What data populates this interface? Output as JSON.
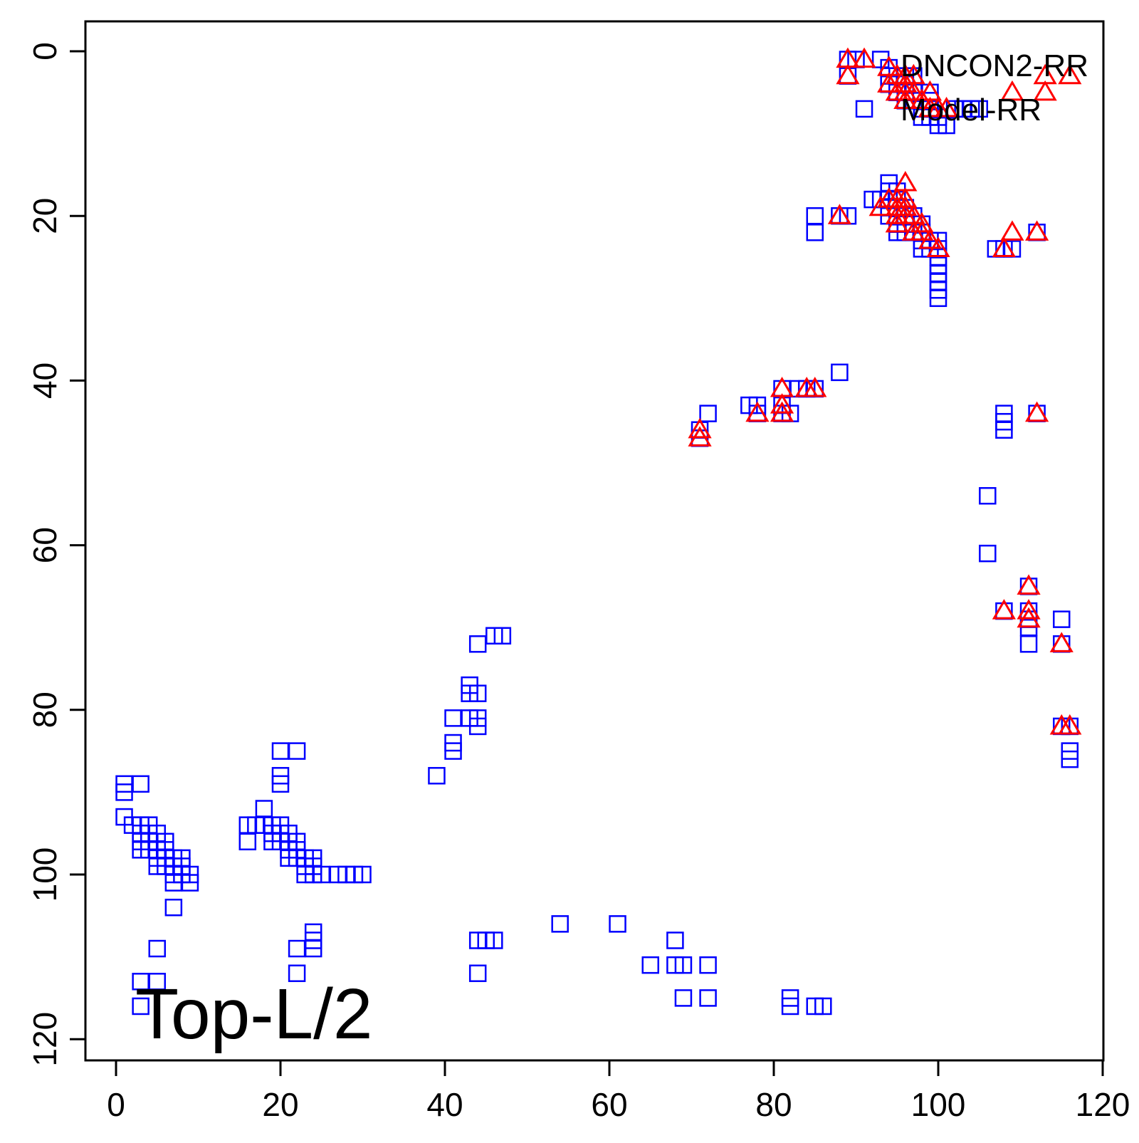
{
  "chart_data": {
    "type": "scatter",
    "title": "",
    "xlabel": "",
    "ylabel": "",
    "xlim": [
      -4,
      120
    ],
    "ylim": [
      123,
      -4
    ],
    "y_axis_reversed": true,
    "grid": false,
    "legend_position": "top-right",
    "annotation": "Top-L/2",
    "x_ticks": [
      {
        "value": 0,
        "label": "0"
      },
      {
        "value": 20,
        "label": "20"
      },
      {
        "value": 40,
        "label": "40"
      },
      {
        "value": 60,
        "label": "60"
      },
      {
        "value": 80,
        "label": "80"
      },
      {
        "value": 100,
        "label": "100"
      },
      {
        "value": 120,
        "label": "120"
      }
    ],
    "y_ticks": [
      {
        "value": 0,
        "label": "0"
      },
      {
        "value": 20,
        "label": "20"
      },
      {
        "value": 40,
        "label": "40"
      },
      {
        "value": 60,
        "label": "60"
      },
      {
        "value": 80,
        "label": "80"
      },
      {
        "value": 100,
        "label": "100"
      },
      {
        "value": 120,
        "label": "120"
      }
    ],
    "series": [
      {
        "name": "DNCON2-RR",
        "marker": "square",
        "color": "#0000FF",
        "points": [
          [
            89,
            1
          ],
          [
            90,
            1
          ],
          [
            93,
            1
          ],
          [
            89,
            3
          ],
          [
            91,
            7
          ],
          [
            94,
            2
          ],
          [
            94,
            3
          ],
          [
            95,
            3
          ],
          [
            96,
            3
          ],
          [
            97,
            3
          ],
          [
            94,
            4
          ],
          [
            95,
            4
          ],
          [
            96,
            4
          ],
          [
            95,
            5
          ],
          [
            96,
            5
          ],
          [
            97,
            5
          ],
          [
            96,
            6
          ],
          [
            97,
            6
          ],
          [
            98,
            7
          ],
          [
            99,
            5
          ],
          [
            99,
            6
          ],
          [
            99,
            7
          ],
          [
            98,
            8
          ],
          [
            99,
            8
          ],
          [
            100,
            8
          ],
          [
            100,
            9
          ],
          [
            101,
            9
          ],
          [
            102,
            7
          ],
          [
            103,
            7
          ],
          [
            104,
            7
          ],
          [
            105,
            7
          ],
          [
            94,
            16
          ],
          [
            94,
            17
          ],
          [
            95,
            17
          ],
          [
            92,
            18
          ],
          [
            93,
            18
          ],
          [
            94,
            18
          ],
          [
            95,
            18
          ],
          [
            94,
            19
          ],
          [
            95,
            19
          ],
          [
            96,
            19
          ],
          [
            94,
            20
          ],
          [
            95,
            20
          ],
          [
            96,
            20
          ],
          [
            97,
            20
          ],
          [
            95,
            21
          ],
          [
            96,
            21
          ],
          [
            97,
            21
          ],
          [
            98,
            21
          ],
          [
            95,
            22
          ],
          [
            96,
            22
          ],
          [
            97,
            22
          ],
          [
            98,
            22
          ],
          [
            98,
            23
          ],
          [
            99,
            23
          ],
          [
            100,
            23
          ],
          [
            98,
            24
          ],
          [
            99,
            24
          ],
          [
            100,
            24
          ],
          [
            100,
            25
          ],
          [
            100,
            26
          ],
          [
            100,
            27
          ],
          [
            100,
            28
          ],
          [
            100,
            29
          ],
          [
            100,
            30
          ],
          [
            85,
            20
          ],
          [
            85,
            22
          ],
          [
            88,
            20
          ],
          [
            89,
            20
          ],
          [
            107,
            24
          ],
          [
            108,
            24
          ],
          [
            109,
            24
          ],
          [
            112,
            22
          ],
          [
            88,
            39
          ],
          [
            83,
            41
          ],
          [
            84,
            41
          ],
          [
            85,
            41
          ],
          [
            81,
            41
          ],
          [
            81,
            43
          ],
          [
            77,
            43
          ],
          [
            78,
            43
          ],
          [
            81,
            44
          ],
          [
            82,
            44
          ],
          [
            78,
            44
          ],
          [
            71,
            46
          ],
          [
            71,
            47
          ],
          [
            72,
            44
          ],
          [
            112,
            44
          ],
          [
            108,
            44
          ],
          [
            108,
            45
          ],
          [
            108,
            46
          ],
          [
            106,
            54
          ],
          [
            106,
            61
          ],
          [
            111,
            65
          ],
          [
            108,
            68
          ],
          [
            111,
            68
          ],
          [
            111,
            69
          ],
          [
            111,
            70
          ],
          [
            111,
            72
          ],
          [
            115,
            69
          ],
          [
            115,
            72
          ],
          [
            115,
            82
          ],
          [
            116,
            82
          ],
          [
            116,
            85
          ],
          [
            116,
            86
          ],
          [
            47,
            71
          ],
          [
            46,
            71
          ],
          [
            44,
            72
          ],
          [
            43,
            77
          ],
          [
            43,
            78
          ],
          [
            44,
            78
          ],
          [
            41,
            81
          ],
          [
            43,
            81
          ],
          [
            44,
            81
          ],
          [
            44,
            82
          ],
          [
            41,
            84
          ],
          [
            41,
            85
          ],
          [
            39,
            88
          ],
          [
            1,
            89
          ],
          [
            1,
            90
          ],
          [
            3,
            89
          ],
          [
            1,
            93
          ],
          [
            2,
            94
          ],
          [
            3,
            94
          ],
          [
            4,
            94
          ],
          [
            3,
            95
          ],
          [
            4,
            95
          ],
          [
            5,
            95
          ],
          [
            3,
            96
          ],
          [
            4,
            96
          ],
          [
            5,
            96
          ],
          [
            6,
            96
          ],
          [
            3,
            97
          ],
          [
            4,
            97
          ],
          [
            5,
            97
          ],
          [
            6,
            97
          ],
          [
            5,
            98
          ],
          [
            6,
            98
          ],
          [
            7,
            98
          ],
          [
            8,
            98
          ],
          [
            5,
            99
          ],
          [
            6,
            99
          ],
          [
            7,
            99
          ],
          [
            8,
            99
          ],
          [
            7,
            100
          ],
          [
            8,
            100
          ],
          [
            9,
            100
          ],
          [
            7,
            101
          ],
          [
            9,
            101
          ],
          [
            7,
            104
          ],
          [
            16,
            94
          ],
          [
            17,
            94
          ],
          [
            18,
            92
          ],
          [
            18,
            94
          ],
          [
            19,
            94
          ],
          [
            20,
            94
          ],
          [
            16,
            96
          ],
          [
            19,
            95
          ],
          [
            20,
            95
          ],
          [
            21,
            95
          ],
          [
            19,
            96
          ],
          [
            20,
            96
          ],
          [
            21,
            96
          ],
          [
            22,
            96
          ],
          [
            21,
            97
          ],
          [
            22,
            97
          ],
          [
            21,
            98
          ],
          [
            22,
            98
          ],
          [
            23,
            98
          ],
          [
            24,
            98
          ],
          [
            23,
            99
          ],
          [
            24,
            99
          ],
          [
            23,
            100
          ],
          [
            24,
            100
          ],
          [
            25,
            100
          ],
          [
            27,
            100
          ],
          [
            28,
            100
          ],
          [
            29,
            100
          ],
          [
            30,
            100
          ],
          [
            20,
            85
          ],
          [
            22,
            85
          ],
          [
            20,
            88
          ],
          [
            20,
            89
          ],
          [
            22,
            109
          ],
          [
            24,
            107
          ],
          [
            24,
            108
          ],
          [
            24,
            109
          ],
          [
            22,
            112
          ],
          [
            5,
            109
          ],
          [
            3,
            113
          ],
          [
            5,
            113
          ],
          [
            3,
            116
          ],
          [
            44,
            108
          ],
          [
            45,
            108
          ],
          [
            46,
            108
          ],
          [
            44,
            112
          ],
          [
            54,
            106
          ],
          [
            61,
            106
          ],
          [
            65,
            111
          ],
          [
            68,
            108
          ],
          [
            68,
            111
          ],
          [
            69,
            111
          ],
          [
            72,
            111
          ],
          [
            69,
            115
          ],
          [
            72,
            115
          ],
          [
            82,
            115
          ],
          [
            82,
            116
          ],
          [
            85,
            116
          ],
          [
            86,
            116
          ]
        ]
      },
      {
        "name": "Model-RR",
        "marker": "triangle",
        "color": "#FF0000",
        "points": [
          [
            89,
            1
          ],
          [
            91,
            1
          ],
          [
            89,
            3
          ],
          [
            94,
            2
          ],
          [
            95,
            3
          ],
          [
            96,
            3
          ],
          [
            97,
            3
          ],
          [
            94,
            4
          ],
          [
            96,
            4
          ],
          [
            95,
            5
          ],
          [
            96,
            5
          ],
          [
            97,
            5
          ],
          [
            96,
            6
          ],
          [
            98,
            6
          ],
          [
            99,
            5
          ],
          [
            99,
            7
          ],
          [
            100,
            7
          ],
          [
            101,
            7
          ],
          [
            109,
            5
          ],
          [
            113,
            3
          ],
          [
            113,
            5
          ],
          [
            116,
            3
          ],
          [
            88,
            20
          ],
          [
            96,
            16
          ],
          [
            94,
            18
          ],
          [
            93,
            19
          ],
          [
            95,
            18
          ],
          [
            96,
            18
          ],
          [
            95,
            19
          ],
          [
            96,
            19
          ],
          [
            95,
            20
          ],
          [
            96,
            20
          ],
          [
            97,
            20
          ],
          [
            95,
            21
          ],
          [
            98,
            21
          ],
          [
            97,
            22
          ],
          [
            98,
            22
          ],
          [
            99,
            23
          ],
          [
            100,
            24
          ],
          [
            108,
            24
          ],
          [
            109,
            22
          ],
          [
            112,
            22
          ],
          [
            81,
            41
          ],
          [
            84,
            41
          ],
          [
            85,
            41
          ],
          [
            81,
            43
          ],
          [
            81,
            44
          ],
          [
            78,
            44
          ],
          [
            71,
            46
          ],
          [
            71,
            47
          ],
          [
            112,
            44
          ],
          [
            111,
            65
          ],
          [
            108,
            68
          ],
          [
            111,
            68
          ],
          [
            111,
            69
          ],
          [
            115,
            72
          ],
          [
            115,
            82
          ],
          [
            116,
            82
          ]
        ]
      }
    ]
  }
}
